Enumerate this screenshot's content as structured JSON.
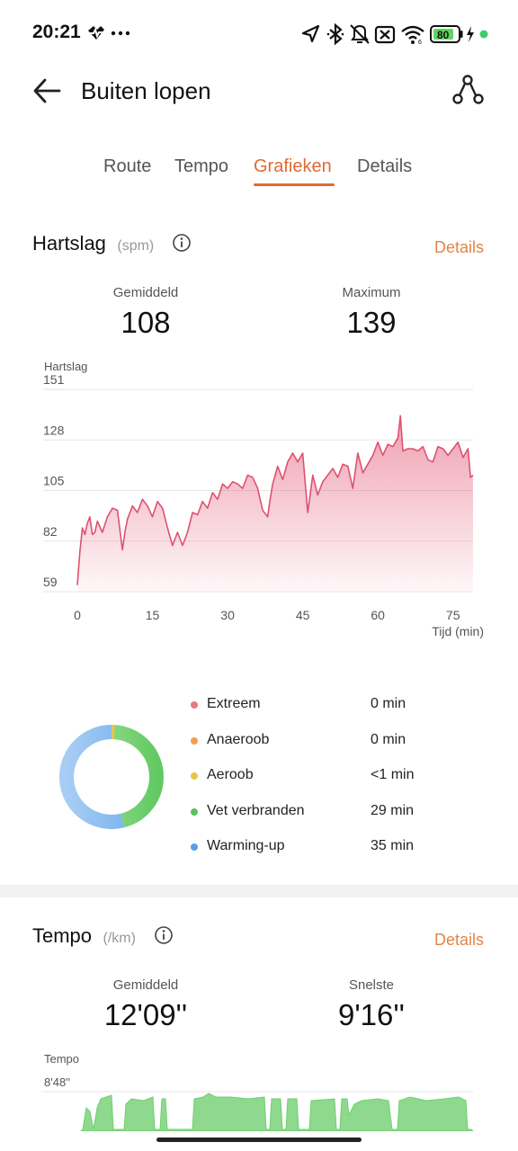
{
  "status_bar": {
    "time": "20:21",
    "battery_level": "80",
    "icons": [
      "heart-rate-notification-icon",
      "more-dots-icon",
      "location-icon",
      "bluetooth-icon",
      "mute-icon",
      "no-sim-icon",
      "wifi-icon",
      "battery-icon",
      "charging-icon",
      "active-dot-icon"
    ]
  },
  "header": {
    "title": "Buiten lopen"
  },
  "tabs": [
    {
      "label": "Route",
      "active": false
    },
    {
      "label": "Tempo",
      "active": false
    },
    {
      "label": "Grafieken",
      "active": true
    },
    {
      "label": "Details",
      "active": false
    }
  ],
  "heart_rate": {
    "title": "Hartslag",
    "unit": "(spm)",
    "details_label": "Details",
    "avg_label": "Gemiddeld",
    "avg_value": "108",
    "max_label": "Maximum",
    "max_value": "139",
    "y_axis_label": "Hartslag",
    "x_axis_label": "Tijd (min)"
  },
  "chart_data": {
    "type": "area",
    "ylabel": "Hartslag",
    "xlabel": "Tijd (min)",
    "y_ticks": [
      151,
      128,
      105,
      82,
      59
    ],
    "x_ticks": [
      0,
      15,
      30,
      45,
      60,
      75
    ],
    "ylim": [
      59,
      151
    ],
    "xlim": [
      0,
      79
    ],
    "color": "#e0516f",
    "series": [
      {
        "x": [
          0,
          0.5,
          1,
          1.5,
          2,
          2.5,
          3,
          3.5,
          4,
          5,
          6,
          7,
          8,
          9,
          9.5,
          10,
          11,
          12,
          13,
          14,
          15,
          16,
          17,
          18,
          19,
          20,
          21,
          22,
          23,
          24,
          25,
          26,
          27,
          28,
          29,
          30,
          31,
          32,
          33,
          34,
          35,
          36,
          37,
          38,
          38.5,
          39,
          40,
          41,
          42,
          43,
          44,
          45,
          46,
          47,
          48,
          49,
          50,
          51,
          52,
          53,
          54,
          55,
          56,
          57,
          58,
          59,
          60,
          61,
          62,
          63,
          64,
          64.5,
          65,
          66,
          67,
          68,
          69,
          70,
          71,
          72,
          73,
          74,
          75,
          76,
          77,
          78,
          78.5,
          79
        ],
        "y": [
          62,
          77,
          88,
          85,
          90,
          93,
          85,
          86,
          91,
          86,
          93,
          97,
          96,
          78,
          86,
          92,
          98,
          95,
          101,
          98,
          93,
          100,
          97,
          88,
          80,
          86,
          80,
          86,
          95,
          94,
          100,
          97,
          104,
          101,
          108,
          106,
          109,
          108,
          106,
          112,
          111,
          106,
          96,
          93,
          101,
          108,
          116,
          110,
          118,
          122,
          118,
          122,
          95,
          112,
          103,
          109,
          112,
          115,
          111,
          117,
          116,
          106,
          122,
          113,
          117,
          121,
          127,
          121,
          126,
          125,
          129,
          139,
          123,
          124,
          124,
          123,
          125,
          119,
          118,
          125,
          124,
          121,
          124,
          127,
          120,
          124,
          111,
          112
        ]
      }
    ]
  },
  "zones": {
    "items": [
      {
        "name": "Extreem",
        "time": "0 min",
        "color": "#e87a7f"
      },
      {
        "name": "Anaeroob",
        "time": "0 min",
        "color": "#f0a04b"
      },
      {
        "name": "Aeroob",
        "time": "<1 min",
        "color": "#e8c84a"
      },
      {
        "name": "Vet verbranden",
        "time": "29 min",
        "color": "#5cc05c"
      },
      {
        "name": "Warming-up",
        "time": "35 min",
        "color": "#5b9ee8"
      }
    ],
    "donut_fractions": {
      "aeroob": 0.01,
      "vet_verbranden": 0.45,
      "warming_up": 0.54
    }
  },
  "tempo": {
    "title": "Tempo",
    "unit": "(/km)",
    "details_label": "Details",
    "avg_label": "Gemiddeld",
    "avg_value": "12'09''",
    "fastest_label": "Snelste",
    "fastest_value": "9'16''",
    "y_axis_label": "Tempo",
    "top_tick": "8'48''",
    "color": "#8ed98e"
  }
}
